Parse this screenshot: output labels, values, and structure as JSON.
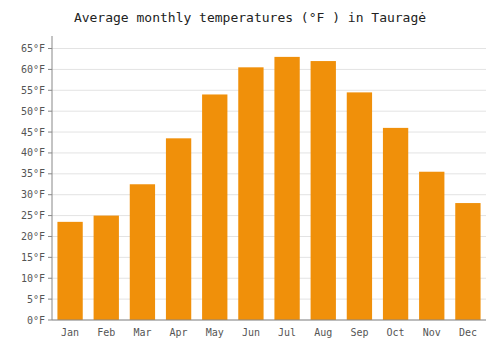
{
  "chart_data": {
    "type": "bar",
    "title": "Average monthly temperatures (°F ) in Tauragė",
    "categories": [
      "Jan",
      "Feb",
      "Mar",
      "Apr",
      "May",
      "Jun",
      "Jul",
      "Aug",
      "Sep",
      "Oct",
      "Nov",
      "Dec"
    ],
    "values": [
      23.5,
      25.0,
      32.5,
      43.5,
      54.0,
      60.5,
      63.0,
      62.0,
      54.5,
      46.0,
      35.5,
      28.0
    ],
    "color": "#F0900A",
    "ylim": [
      0,
      68
    ],
    "yticks": [
      {
        "value": 0,
        "label": "0°F"
      },
      {
        "value": 5,
        "label": "5°F"
      },
      {
        "value": 10,
        "label": "10°F"
      },
      {
        "value": 15,
        "label": "15°F"
      },
      {
        "value": 20,
        "label": "20°F"
      },
      {
        "value": 25,
        "label": "25°F"
      },
      {
        "value": 30,
        "label": "30°F"
      },
      {
        "value": 35,
        "label": "35°F"
      },
      {
        "value": 40,
        "label": "40°F"
      },
      {
        "value": 45,
        "label": "45°F"
      },
      {
        "value": 50,
        "label": "50°F"
      },
      {
        "value": 55,
        "label": "55°F"
      },
      {
        "value": 60,
        "label": "60°F"
      },
      {
        "value": 65,
        "label": "65°F"
      }
    ],
    "grid": true
  }
}
